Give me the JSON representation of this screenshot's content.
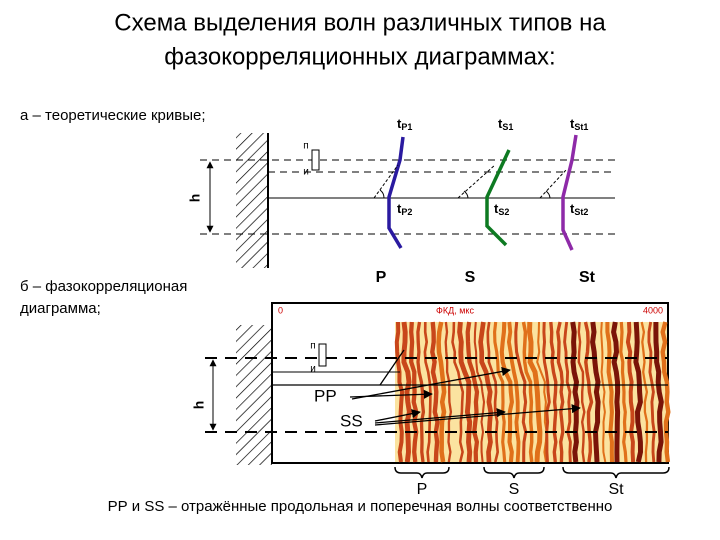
{
  "header": {
    "title": [
      "Схема выделения волн различных типов на",
      "фазокорреляционных диаграммах:"
    ]
  },
  "part_a": {
    "caption": "а – теоретические кривые;",
    "marker_top": "п",
    "marker_bottom": "и",
    "depth": "h",
    "curve_labels": [
      {
        "base": "t",
        "sub": "P1"
      },
      {
        "base": "t",
        "sub": "S1"
      },
      {
        "base": "t",
        "sub": "St1"
      },
      {
        "base": "t",
        "sub": "P2"
      },
      {
        "base": "t",
        "sub": "S2"
      },
      {
        "base": "t",
        "sub": "St2"
      }
    ],
    "wave_labels": [
      "P",
      "S",
      "St"
    ]
  },
  "part_b": {
    "caption": [
      "б – фазокорреляционая",
      "диаграмма;"
    ],
    "axis_start": "0",
    "axis_title": "ФКД, мкс",
    "axis_end": "4000",
    "marker_top": "п",
    "marker_bottom": "и",
    "depth": "h",
    "reflected": [
      "PP",
      "SS"
    ],
    "wave_labels": [
      "P",
      "S",
      "St"
    ]
  },
  "footer": {
    "note": "РР и SS – отражённые продольная и поперечная волны соответственно"
  }
}
